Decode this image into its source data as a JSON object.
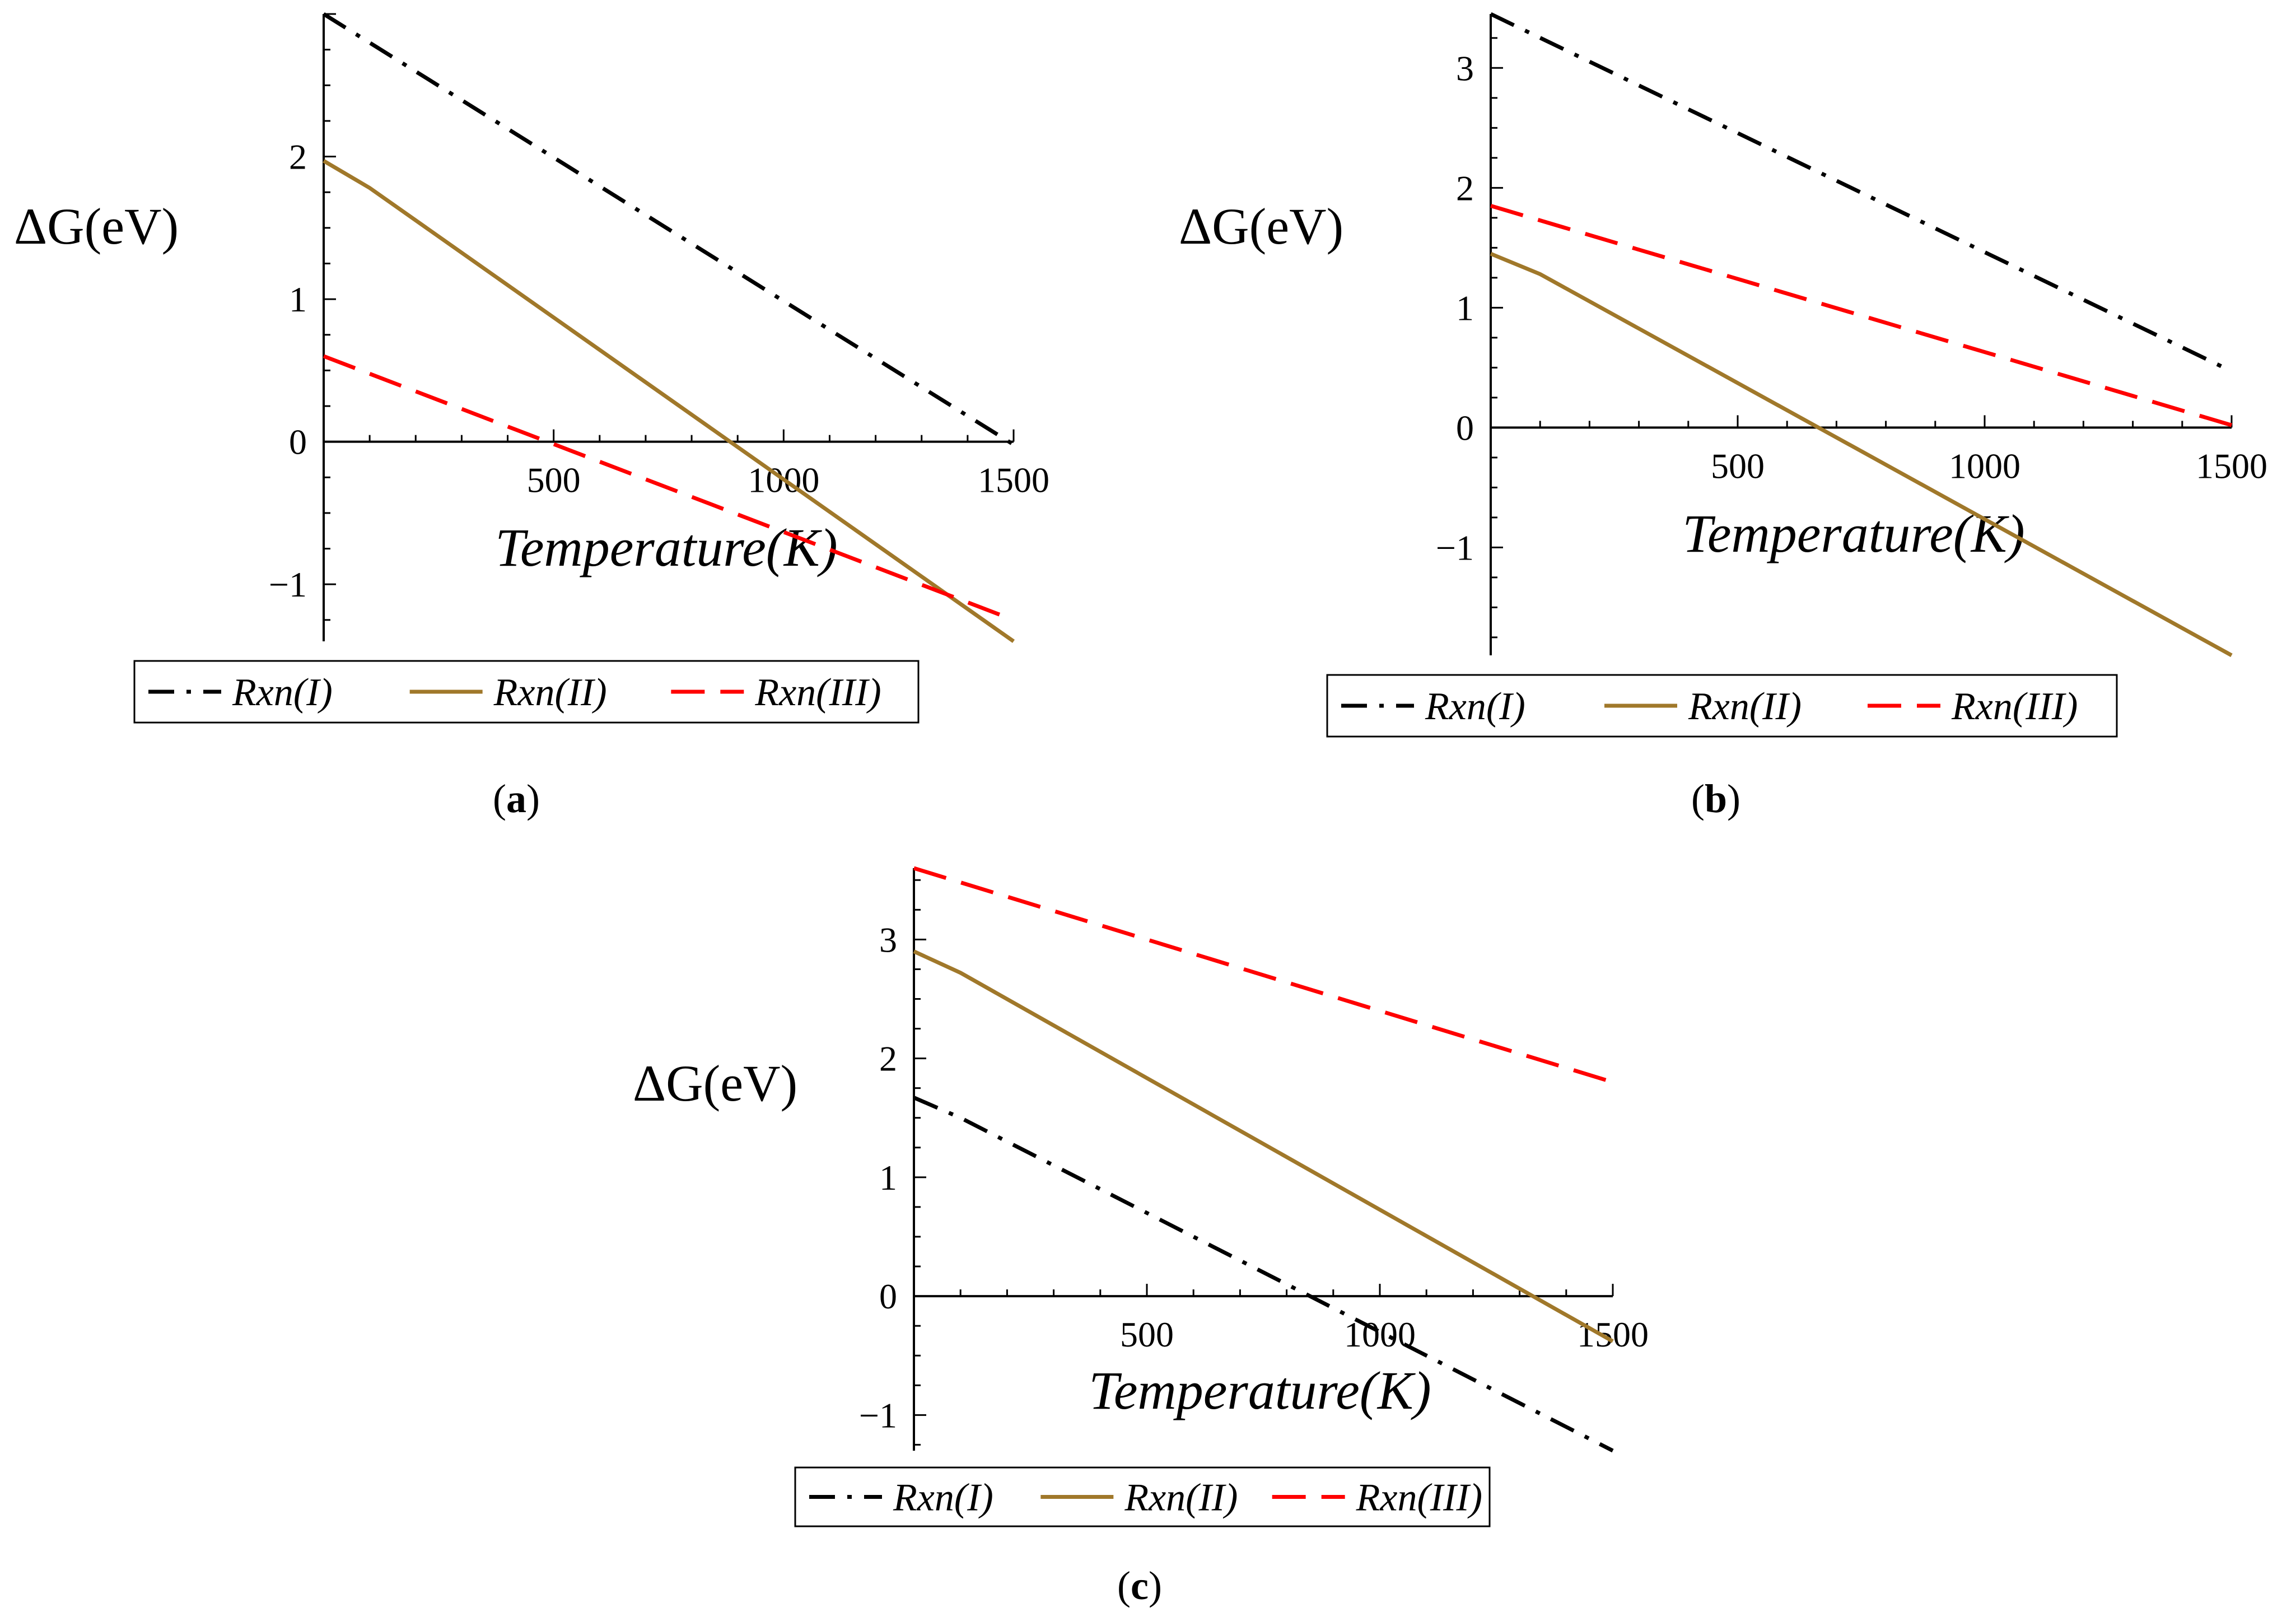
{
  "chart_data": [
    {
      "type": "line",
      "panel": "a",
      "caption": "a",
      "xlabel": "Temperature(K)",
      "ylabel": "ΔG(eV)",
      "xlim": [
        0,
        1500
      ],
      "ylim": [
        -1.4,
        3.0
      ],
      "xticks": [
        "500",
        "1000",
        "1500"
      ],
      "yticks": [
        "−1",
        "0",
        "1",
        "2"
      ],
      "xtick_values": [
        500,
        1000,
        1500
      ],
      "ytick_values": [
        -1,
        0,
        1,
        2
      ],
      "legend_position": "bottom",
      "series": [
        {
          "name": "Rxn(I)",
          "color": "#000000",
          "dash": "dash-dot",
          "x": [
            0,
            1500
          ],
          "y": [
            3.0,
            -0.02
          ]
        },
        {
          "name": "Rxn(II)",
          "color": "#A0782A",
          "dash": "solid",
          "x": [
            0,
            100,
            1500
          ],
          "y": [
            1.97,
            1.78,
            -1.4
          ]
        },
        {
          "name": "Rxn(III)",
          "color": "#FF0000",
          "dash": "dashed",
          "x": [
            0,
            1500
          ],
          "y": [
            0.6,
            -1.25
          ]
        }
      ]
    },
    {
      "type": "line",
      "panel": "b",
      "caption": "b",
      "xlabel": "Temperature(K)",
      "ylabel": "ΔG(eV)",
      "xlim": [
        0,
        1500
      ],
      "ylim": [
        -1.9,
        3.45
      ],
      "xticks": [
        "500",
        "1000",
        "1500"
      ],
      "yticks": [
        "−1",
        "0",
        "1",
        "2",
        "3"
      ],
      "xtick_values": [
        500,
        1000,
        1500
      ],
      "ytick_values": [
        -1,
        0,
        1,
        2,
        3
      ],
      "legend_position": "bottom",
      "series": [
        {
          "name": "Rxn(I)",
          "color": "#000000",
          "dash": "dash-dot",
          "x": [
            0,
            1500
          ],
          "y": [
            3.45,
            0.47
          ]
        },
        {
          "name": "Rxn(II)",
          "color": "#A0782A",
          "dash": "solid",
          "x": [
            0,
            100,
            1500
          ],
          "y": [
            1.45,
            1.28,
            -1.9
          ]
        },
        {
          "name": "Rxn(III)",
          "color": "#FF0000",
          "dash": "dashed",
          "x": [
            0,
            1500
          ],
          "y": [
            1.85,
            0.02
          ]
        }
      ]
    },
    {
      "type": "line",
      "panel": "c",
      "caption": "c",
      "xlabel": "Temperature(K)",
      "ylabel": "ΔG(eV)",
      "xlim": [
        0,
        1500
      ],
      "ylim": [
        -1.3,
        3.6
      ],
      "xticks": [
        "500",
        "1000",
        "1500"
      ],
      "yticks": [
        "−1",
        "0",
        "1",
        "2",
        "3"
      ],
      "xtick_values": [
        500,
        1000,
        1500
      ],
      "ytick_values": [
        -1,
        0,
        1,
        2,
        3
      ],
      "legend_position": "bottom",
      "series": [
        {
          "name": "Rxn(I)",
          "color": "#000000",
          "dash": "dash-dot",
          "x": [
            0,
            100,
            1500
          ],
          "y": [
            1.67,
            1.5,
            -1.3
          ]
        },
        {
          "name": "Rxn(II)",
          "color": "#A0782A",
          "dash": "solid",
          "x": [
            0,
            100,
            1500
          ],
          "y": [
            2.9,
            2.72,
            -0.38
          ]
        },
        {
          "name": "Rxn(III)",
          "color": "#FF0000",
          "dash": "dashed",
          "x": [
            0,
            1500
          ],
          "y": [
            3.6,
            1.8
          ]
        }
      ]
    }
  ]
}
